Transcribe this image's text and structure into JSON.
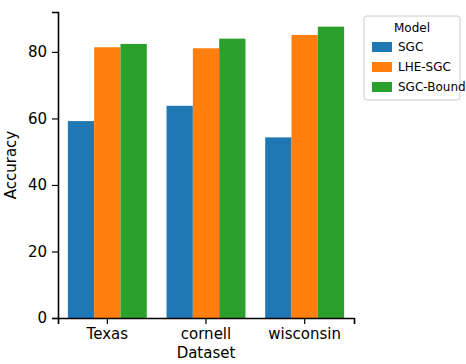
{
  "chart_data": {
    "type": "bar",
    "x_label": "Dataset",
    "y_label": "Accuracy",
    "categories": [
      "Texas",
      "cornell",
      "wisconsin"
    ],
    "series": [
      {
        "name": "SGC",
        "color": "#1f77b4",
        "values": [
          59.2,
          63.8,
          54.3
        ]
      },
      {
        "name": "LHE-SGC",
        "color": "#ff7f0e",
        "values": [
          81.4,
          81.1,
          85.1
        ]
      },
      {
        "name": "SGC-Bound",
        "color": "#2ca02c",
        "values": [
          82.4,
          84.0,
          87.6
        ]
      }
    ],
    "ylim": [
      0,
      92
    ],
    "yticks": [
      0,
      20,
      40,
      60,
      80
    ],
    "legend": "upper right",
    "legend_title": "Model",
    "grid": false
  }
}
